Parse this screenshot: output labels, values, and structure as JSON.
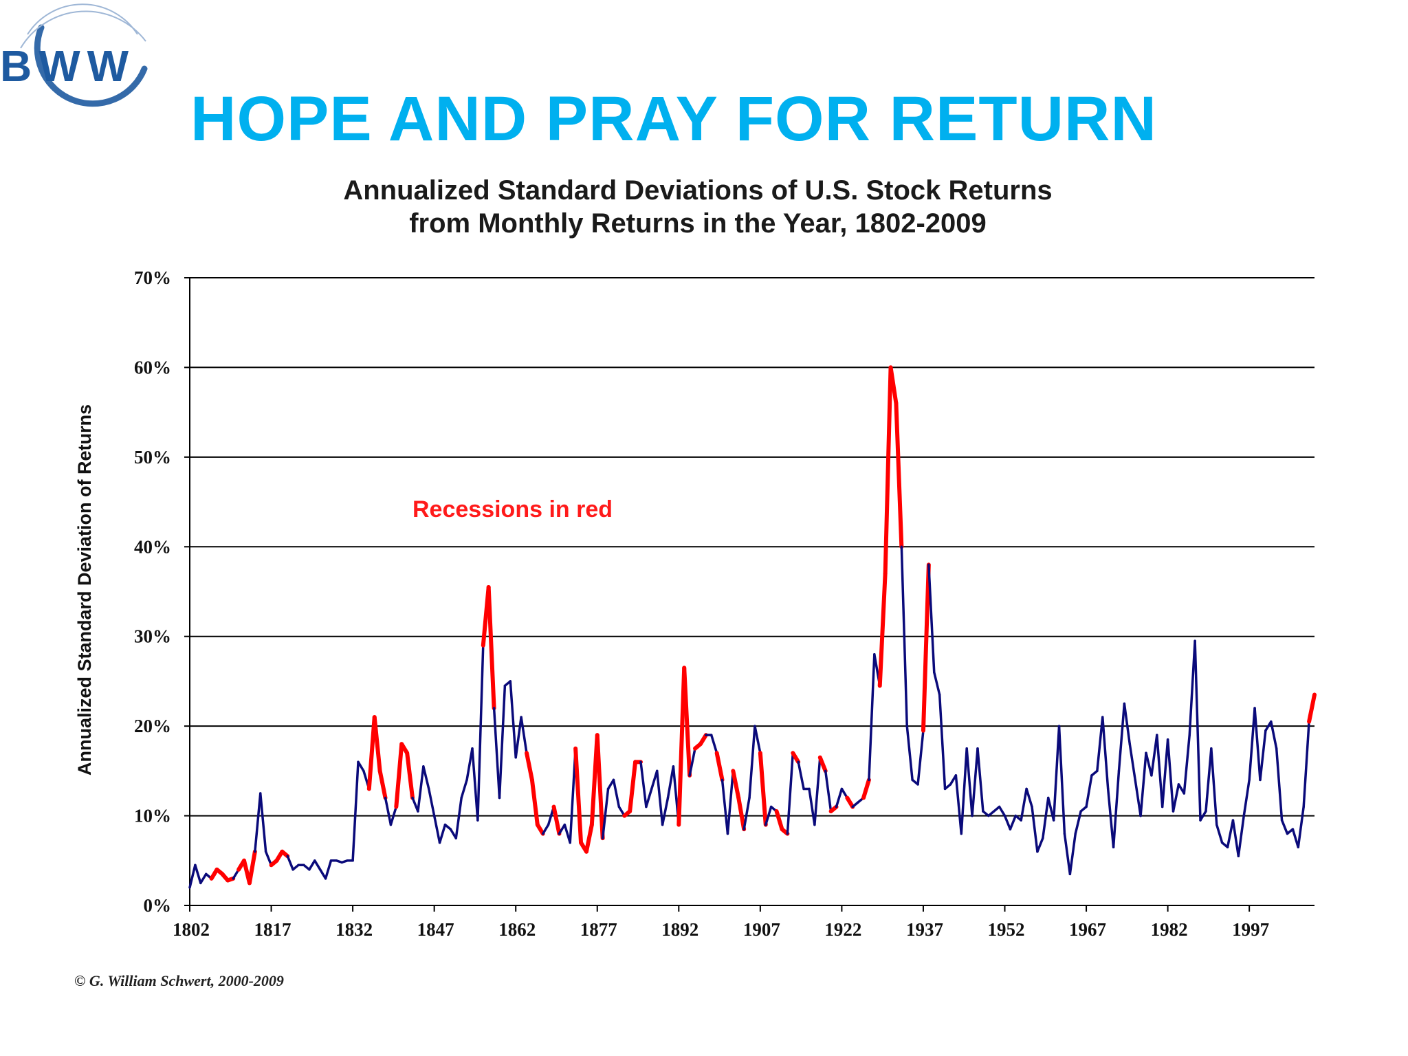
{
  "logo": {
    "text": "BWW",
    "color": "#1e5aa0"
  },
  "slide_title": "HOPE AND PRAY FOR RETURN",
  "colors": {
    "title": "#00b0ef",
    "normal": "#0a0a7a",
    "recession": "#ff0000",
    "annotation": "#ff1a1a"
  },
  "copyright": "© G. William Schwert, 2000-2009",
  "chart_data": {
    "type": "line",
    "title": "Annualized Standard Deviations of U.S. Stock Returns",
    "subtitle": "from Monthly Returns in the Year, 1802-2009",
    "ylabel": "Annualized Standard Deviation of Returns",
    "xlabel": "",
    "xlim": [
      1802,
      2009
    ],
    "ylim": [
      0,
      70
    ],
    "x_ticks": [
      1802,
      1817,
      1832,
      1847,
      1862,
      1877,
      1892,
      1907,
      1922,
      1937,
      1952,
      1967,
      1982,
      1997
    ],
    "y_ticks": [
      0,
      10,
      20,
      30,
      40,
      50,
      60,
      70
    ],
    "y_tick_labels": [
      "0%",
      "10%",
      "20%",
      "30%",
      "40%",
      "50%",
      "60%",
      "70%"
    ],
    "grid": "horizontal",
    "annotation": "Recessions in red",
    "series": [
      {
        "values": [
          [
            1802,
            2
          ],
          [
            1803,
            4.5
          ],
          [
            1804,
            2.5
          ],
          [
            1805,
            3.5
          ],
          [
            1806,
            3
          ],
          [
            1807,
            4
          ],
          [
            1808,
            3.5
          ],
          [
            1809,
            2.8
          ],
          [
            1810,
            3
          ],
          [
            1811,
            4
          ],
          [
            1812,
            5
          ],
          [
            1813,
            2.5
          ],
          [
            1814,
            6
          ],
          [
            1815,
            12.5
          ],
          [
            1816,
            6
          ],
          [
            1817,
            4.5
          ],
          [
            1818,
            5
          ],
          [
            1819,
            6
          ],
          [
            1820,
            5.5
          ],
          [
            1821,
            4
          ],
          [
            1822,
            4.5
          ],
          [
            1823,
            4.5
          ],
          [
            1824,
            4
          ],
          [
            1825,
            5
          ],
          [
            1826,
            4
          ],
          [
            1827,
            3
          ],
          [
            1828,
            5
          ],
          [
            1829,
            5
          ],
          [
            1830,
            4.8
          ],
          [
            1831,
            5
          ],
          [
            1832,
            5
          ],
          [
            1833,
            16
          ],
          [
            1834,
            15
          ],
          [
            1835,
            13
          ],
          [
            1836,
            21
          ],
          [
            1837,
            15
          ],
          [
            1838,
            12
          ],
          [
            1839,
            9
          ],
          [
            1840,
            11
          ],
          [
            1841,
            18
          ],
          [
            1842,
            17
          ],
          [
            1843,
            12
          ],
          [
            1844,
            10.5
          ],
          [
            1845,
            15.5
          ],
          [
            1846,
            13
          ],
          [
            1847,
            10
          ],
          [
            1848,
            7
          ],
          [
            1849,
            9
          ],
          [
            1850,
            8.5
          ],
          [
            1851,
            7.5
          ],
          [
            1852,
            12
          ],
          [
            1853,
            14
          ],
          [
            1854,
            17.5
          ],
          [
            1855,
            9.5
          ],
          [
            1856,
            29
          ],
          [
            1857,
            35.5
          ],
          [
            1858,
            22
          ],
          [
            1859,
            12
          ],
          [
            1860,
            24.5
          ],
          [
            1861,
            25
          ],
          [
            1862,
            16.5
          ],
          [
            1863,
            21
          ],
          [
            1864,
            17
          ],
          [
            1865,
            14
          ],
          [
            1866,
            9
          ],
          [
            1867,
            8
          ],
          [
            1868,
            9
          ],
          [
            1869,
            11
          ],
          [
            1870,
            8
          ],
          [
            1871,
            9
          ],
          [
            1872,
            7
          ],
          [
            1873,
            17.5
          ],
          [
            1874,
            7
          ],
          [
            1875,
            6
          ],
          [
            1876,
            9
          ],
          [
            1877,
            19
          ],
          [
            1878,
            7.5
          ],
          [
            1879,
            13
          ],
          [
            1880,
            14
          ],
          [
            1881,
            11
          ],
          [
            1882,
            10
          ],
          [
            1883,
            10.5
          ],
          [
            1884,
            16
          ],
          [
            1885,
            16
          ],
          [
            1886,
            11
          ],
          [
            1887,
            13
          ],
          [
            1888,
            15
          ],
          [
            1889,
            9
          ],
          [
            1890,
            12
          ],
          [
            1891,
            15.5
          ],
          [
            1892,
            9
          ],
          [
            1893,
            26.5
          ],
          [
            1894,
            14.5
          ],
          [
            1895,
            17.5
          ],
          [
            1896,
            18
          ],
          [
            1897,
            19
          ],
          [
            1898,
            19
          ],
          [
            1899,
            17
          ],
          [
            1900,
            14
          ],
          [
            1901,
            8
          ],
          [
            1902,
            15
          ],
          [
            1903,
            12
          ],
          [
            1904,
            8.5
          ],
          [
            1905,
            12
          ],
          [
            1906,
            20
          ],
          [
            1907,
            17
          ],
          [
            1908,
            9
          ],
          [
            1909,
            11
          ],
          [
            1910,
            10.5
          ],
          [
            1911,
            8.5
          ],
          [
            1912,
            8
          ],
          [
            1913,
            17
          ],
          [
            1914,
            16
          ],
          [
            1915,
            13
          ],
          [
            1916,
            13
          ],
          [
            1917,
            9
          ],
          [
            1918,
            16.5
          ],
          [
            1919,
            15
          ],
          [
            1920,
            10.5
          ],
          [
            1921,
            11
          ],
          [
            1922,
            13
          ],
          [
            1923,
            12
          ],
          [
            1924,
            11
          ],
          [
            1925,
            11.5
          ],
          [
            1926,
            12
          ],
          [
            1927,
            14
          ],
          [
            1928,
            28
          ],
          [
            1929,
            24.5
          ],
          [
            1930,
            37
          ],
          [
            1931,
            60
          ],
          [
            1932,
            56
          ],
          [
            1933,
            40
          ],
          [
            1934,
            20
          ],
          [
            1935,
            14
          ],
          [
            1936,
            13.5
          ],
          [
            1937,
            19.5
          ],
          [
            1938,
            38
          ],
          [
            1939,
            26
          ],
          [
            1940,
            23.5
          ],
          [
            1941,
            13
          ],
          [
            1942,
            13.5
          ],
          [
            1943,
            14.5
          ],
          [
            1944,
            8
          ],
          [
            1945,
            17.5
          ],
          [
            1946,
            10
          ],
          [
            1947,
            17.5
          ],
          [
            1948,
            10.5
          ],
          [
            1949,
            10
          ],
          [
            1950,
            10.5
          ],
          [
            1951,
            11
          ],
          [
            1952,
            10
          ],
          [
            1953,
            8.5
          ],
          [
            1954,
            10
          ],
          [
            1955,
            9.5
          ],
          [
            1956,
            13
          ],
          [
            1957,
            11
          ],
          [
            1958,
            6
          ],
          [
            1959,
            7.5
          ],
          [
            1960,
            12
          ],
          [
            1961,
            9.5
          ],
          [
            1962,
            20
          ],
          [
            1963,
            8
          ],
          [
            1964,
            3.5
          ],
          [
            1965,
            8
          ],
          [
            1966,
            10.5
          ],
          [
            1967,
            11
          ],
          [
            1968,
            14.5
          ],
          [
            1969,
            15
          ],
          [
            1970,
            21
          ],
          [
            1971,
            13
          ],
          [
            1972,
            6.5
          ],
          [
            1973,
            15
          ],
          [
            1974,
            22.5
          ],
          [
            1975,
            18
          ],
          [
            1976,
            14
          ],
          [
            1977,
            10
          ],
          [
            1978,
            17
          ],
          [
            1979,
            14.5
          ],
          [
            1980,
            19
          ],
          [
            1981,
            11
          ],
          [
            1982,
            18.5
          ],
          [
            1983,
            10.5
          ],
          [
            1984,
            13.5
          ],
          [
            1985,
            12.5
          ],
          [
            1986,
            19
          ],
          [
            1987,
            29.5
          ],
          [
            1988,
            9.5
          ],
          [
            1989,
            10.5
          ],
          [
            1990,
            17.5
          ],
          [
            1991,
            9
          ],
          [
            1992,
            7
          ],
          [
            1993,
            6.5
          ],
          [
            1994,
            9.5
          ],
          [
            1995,
            5.5
          ],
          [
            1996,
            10
          ],
          [
            1997,
            14
          ],
          [
            1998,
            22
          ],
          [
            1999,
            14
          ],
          [
            2000,
            19.5
          ],
          [
            2001,
            20.5
          ],
          [
            2002,
            17.5
          ],
          [
            2003,
            9.5
          ],
          [
            2004,
            8
          ],
          [
            2005,
            8.5
          ],
          [
            2006,
            6.5
          ],
          [
            2007,
            11
          ],
          [
            2008,
            20.5
          ],
          [
            2009,
            23.5
          ]
        ]
      }
    ],
    "recession_periods": [
      [
        1806,
        1810
      ],
      [
        1811,
        1814
      ],
      [
        1817,
        1820
      ],
      [
        1835,
        1838
      ],
      [
        1840,
        1843
      ],
      [
        1856,
        1858
      ],
      [
        1864,
        1867
      ],
      [
        1869,
        1870
      ],
      [
        1873,
        1878
      ],
      [
        1882,
        1885
      ],
      [
        1892,
        1894
      ],
      [
        1895,
        1897
      ],
      [
        1899,
        1900
      ],
      [
        1902,
        1904
      ],
      [
        1907,
        1908
      ],
      [
        1910,
        1912
      ],
      [
        1913,
        1914
      ],
      [
        1918,
        1919
      ],
      [
        1920,
        1921
      ],
      [
        1923,
        1924
      ],
      [
        1926,
        1927
      ],
      [
        1929,
        1933
      ],
      [
        1937,
        1938
      ],
      [
        1945,
        1945
      ],
      [
        2008,
        2009
      ]
    ]
  }
}
